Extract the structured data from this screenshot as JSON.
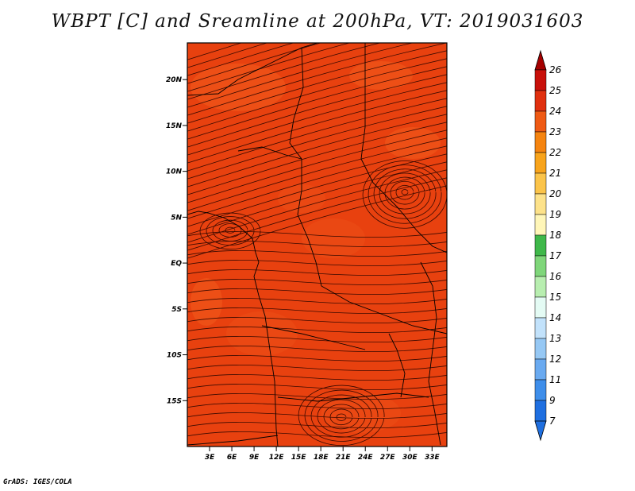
{
  "title": "WBPT [C] and Sreamline at 200hPa, VT: 2019031603",
  "credit": "GrADS: IGES/COLA",
  "map": {
    "lon_range": [
      0,
      35
    ],
    "lat_range": [
      -20,
      24
    ],
    "field_color": "#e8410f",
    "lat_ticks": [
      {
        "label": "20N",
        "lat": 20
      },
      {
        "label": "15N",
        "lat": 15
      },
      {
        "label": "10N",
        "lat": 10
      },
      {
        "label": "5N",
        "lat": 5
      },
      {
        "label": "EQ",
        "lat": 0
      },
      {
        "label": "5S",
        "lat": -5
      },
      {
        "label": "10S",
        "lat": -10
      },
      {
        "label": "15S",
        "lat": -15
      }
    ],
    "lon_ticks": [
      {
        "label": "3E",
        "lon": 3
      },
      {
        "label": "6E",
        "lon": 6
      },
      {
        "label": "9E",
        "lon": 9
      },
      {
        "label": "12E",
        "lon": 12
      },
      {
        "label": "15E",
        "lon": 15
      },
      {
        "label": "18E",
        "lon": 18
      },
      {
        "label": "21E",
        "lon": 21
      },
      {
        "label": "24E",
        "lon": 24
      },
      {
        "label": "27E",
        "lon": 27
      },
      {
        "label": "30E",
        "lon": 30
      },
      {
        "label": "33E",
        "lon": 33
      }
    ]
  },
  "colorbar": {
    "levels": [
      {
        "label": "26",
        "color": "#a50000"
      },
      {
        "label": "25",
        "color": "#c8100a"
      },
      {
        "label": "24",
        "color": "#e0300f"
      },
      {
        "label": "23",
        "color": "#ef5a14"
      },
      {
        "label": "22",
        "color": "#f58410"
      },
      {
        "label": "21",
        "color": "#f8a41c"
      },
      {
        "label": "20",
        "color": "#fbc44a"
      },
      {
        "label": "19",
        "color": "#fde28a"
      },
      {
        "label": "18",
        "color": "#fff6b8"
      },
      {
        "label": "17",
        "color": "#3fb84a"
      },
      {
        "label": "16",
        "color": "#7fd67a"
      },
      {
        "label": "15",
        "color": "#b8eeb0"
      },
      {
        "label": "14",
        "color": "#e4fbf4"
      },
      {
        "label": "13",
        "color": "#c2e2fb"
      },
      {
        "label": "12",
        "color": "#96c8f4"
      },
      {
        "label": "11",
        "color": "#6aaaf0"
      },
      {
        "label": "9",
        "color": "#3e8eea"
      },
      {
        "label": "7",
        "color": "#1f6fe0"
      }
    ]
  }
}
